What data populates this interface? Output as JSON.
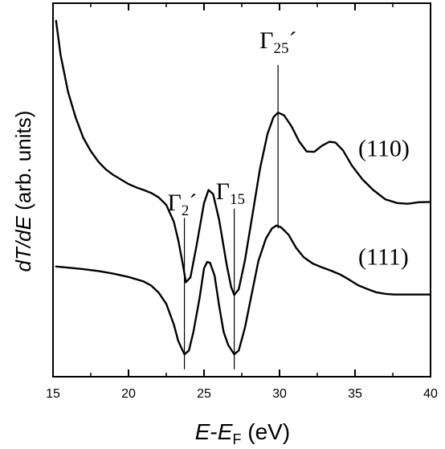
{
  "chart_data": {
    "type": "line",
    "xlabel": {
      "main": "E",
      "dash": "-",
      "main2": "E",
      "sub": "F",
      "unit": " (eV)"
    },
    "ylabel": {
      "italic": "dT/dE",
      "rest": " (arb. units)"
    },
    "xlim": [
      15,
      40
    ],
    "ylim": [
      0,
      1
    ],
    "x_ticks": [
      15,
      20,
      25,
      30,
      35,
      40
    ],
    "x_tick_labels": [
      "15",
      "20",
      "25",
      "30",
      "35",
      "40"
    ],
    "grid": false,
    "series": [
      {
        "name": "(110)",
        "x": [
          15.2,
          15.5,
          16,
          16.5,
          17,
          17.5,
          18,
          18.5,
          19,
          19.5,
          20,
          20.5,
          21,
          21.5,
          22,
          22.5,
          23,
          23.3,
          23.6,
          23.8,
          24.1,
          24.5,
          25.0,
          25.3,
          25.6,
          26.0,
          26.5,
          26.8,
          27.0,
          27.3,
          27.7,
          28.2,
          28.7,
          29.2,
          29.6,
          29.9,
          30.3,
          30.8,
          31.3,
          31.8,
          32.3,
          32.8,
          33.3,
          33.7,
          34.2,
          34.8,
          35.5,
          36.2,
          37,
          37.8,
          38.5,
          39.2,
          40
        ],
        "y": [
          0.953,
          0.862,
          0.762,
          0.694,
          0.64,
          0.604,
          0.576,
          0.555,
          0.54,
          0.528,
          0.516,
          0.507,
          0.5,
          0.492,
          0.48,
          0.46,
          0.415,
          0.365,
          0.3,
          0.253,
          0.266,
          0.35,
          0.465,
          0.5,
          0.489,
          0.42,
          0.3,
          0.24,
          0.219,
          0.234,
          0.31,
          0.432,
          0.556,
          0.65,
          0.695,
          0.707,
          0.7,
          0.67,
          0.63,
          0.603,
          0.602,
          0.618,
          0.629,
          0.627,
          0.606,
          0.565,
          0.528,
          0.5,
          0.475,
          0.465,
          0.463,
          0.467,
          0.468
        ]
      },
      {
        "name": "(111)",
        "x": [
          15.2,
          16,
          17,
          18,
          19,
          20,
          21,
          21.5,
          22,
          22.5,
          23,
          23.3,
          23.7,
          24.0,
          24.3,
          24.7,
          25.0,
          25.2,
          25.4,
          25.7,
          26.0,
          26.3,
          26.6,
          27.0,
          27.3,
          27.7,
          28.1,
          28.6,
          29.1,
          29.5,
          29.8,
          30.1,
          30.6,
          31.1,
          31.6,
          32.2,
          32.8,
          33.4,
          34.0,
          34.6,
          35.2,
          35.8,
          36.4,
          37,
          37.6,
          38.2,
          38.8,
          40
        ],
        "y": [
          0.295,
          0.292,
          0.288,
          0.283,
          0.276,
          0.267,
          0.255,
          0.244,
          0.225,
          0.195,
          0.14,
          0.095,
          0.06,
          0.07,
          0.12,
          0.21,
          0.29,
          0.307,
          0.305,
          0.27,
          0.19,
          0.12,
          0.085,
          0.06,
          0.07,
          0.13,
          0.21,
          0.31,
          0.37,
          0.397,
          0.405,
          0.4,
          0.38,
          0.345,
          0.32,
          0.303,
          0.293,
          0.284,
          0.274,
          0.26,
          0.245,
          0.235,
          0.226,
          0.222,
          0.22,
          0.22,
          0.22,
          0.22
        ]
      }
    ],
    "series_labels": [
      "(110)",
      "(111)"
    ],
    "annotations": [
      {
        "symbol": "Γ",
        "sub": "2",
        "prime": "´",
        "x": 23.7
      },
      {
        "symbol": "Γ",
        "sub": "15",
        "prime": "",
        "x": 27.0
      },
      {
        "symbol": "Γ",
        "sub": "25",
        "prime": "´",
        "x": 29.9
      }
    ],
    "colors": {
      "line": "#000000",
      "axis": "#000000",
      "background": "#ffffff"
    }
  }
}
